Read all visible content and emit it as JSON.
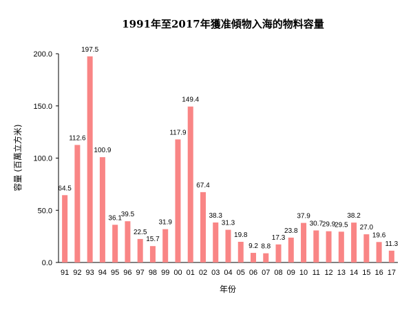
{
  "chart_data": {
    "type": "bar",
    "title": "1991年至2017年獲准傾物入海的物料容量",
    "xlabel": "年份",
    "ylabel": "容量 (百萬立方米)",
    "categories": [
      "91",
      "92",
      "93",
      "94",
      "95",
      "96",
      "97",
      "98",
      "99",
      "00",
      "01",
      "02",
      "03",
      "04",
      "05",
      "06",
      "07",
      "08",
      "09",
      "10",
      "11",
      "12",
      "13",
      "14",
      "15",
      "16",
      "17"
    ],
    "values": [
      64.5,
      112.6,
      197.5,
      100.9,
      36.1,
      39.5,
      22.5,
      15.7,
      31.9,
      117.9,
      149.4,
      67.4,
      38.3,
      31.3,
      19.8,
      9.2,
      8.8,
      17.3,
      23.8,
      37.9,
      30.7,
      29.9,
      29.5,
      38.2,
      27.0,
      19.6,
      11.3
    ],
    "value_labels": [
      "64.5",
      "112.6",
      "197.5",
      "100.9",
      "36.1",
      "39.5",
      "22.5",
      "15.7",
      "31.9",
      "117.9",
      "149.4",
      "67.4",
      "38.3",
      "31.3",
      "19.8",
      "9.2",
      "8.8",
      "17.3",
      "23.8",
      "37.9",
      "30.7",
      "29.9",
      "29.5",
      "38.2",
      "27.0",
      "19.6",
      "11.3"
    ],
    "ylim": [
      0,
      200
    ],
    "yticks": [
      "0.0",
      "50.0",
      "100.0",
      "150.0",
      "200.0"
    ],
    "bar_color": "#f98585",
    "grid": false,
    "legend": "none"
  }
}
